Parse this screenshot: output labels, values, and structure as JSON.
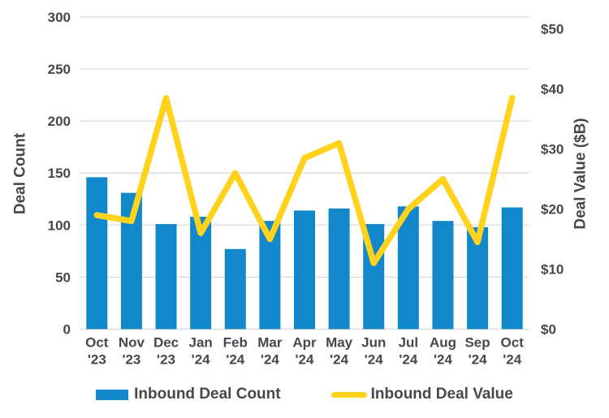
{
  "chart_data": {
    "type": "bar",
    "subtype": "combo-bar-line",
    "title": "",
    "categories": [
      "Oct '23",
      "Nov '23",
      "Dec '23",
      "Jan '24",
      "Feb '24",
      "Mar '24",
      "Apr '24",
      "May '24",
      "Jun '24",
      "Jul '24",
      "Aug '24",
      "Sep '24",
      "Oct '24"
    ],
    "series": [
      {
        "name": "Inbound Deal Count",
        "type": "bar",
        "axis": "left",
        "values": [
          146,
          131,
          101,
          108,
          77,
          104,
          114,
          116,
          101,
          118,
          104,
          98,
          117
        ]
      },
      {
        "name": "Inbound Deal Value",
        "type": "line",
        "axis": "right",
        "values": [
          19,
          18,
          38.5,
          16,
          26,
          15,
          28.5,
          31,
          11,
          20,
          25,
          14.5,
          38.5
        ]
      }
    ],
    "left_axis": {
      "label": "Deal Count",
      "min": 0,
      "max": 300,
      "tick_step": 50,
      "ticks": [
        0,
        50,
        100,
        150,
        200,
        250,
        300
      ],
      "tick_labels": [
        "0",
        "50",
        "100",
        "150",
        "200",
        "250",
        "300"
      ]
    },
    "right_axis": {
      "label": "Deal Value ($B)",
      "min": 0,
      "max": 50,
      "tick_step": 10,
      "ticks": [
        0,
        10,
        20,
        30,
        40,
        50
      ],
      "tick_labels": [
        "$0",
        "$10",
        "$20",
        "$30",
        "$40",
        "$50"
      ],
      "top_headroom_value": 52
    },
    "grid": "horizontal",
    "legend_position": "bottom"
  },
  "colors": {
    "bar": "#1287c9",
    "line": "#ffd21e",
    "text": "#45484d",
    "gridline": "#d9d9d9",
    "background": "#ffffff"
  }
}
